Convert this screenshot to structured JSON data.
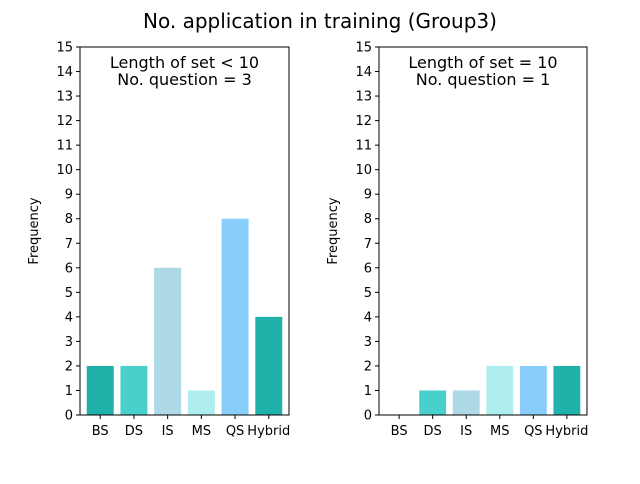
{
  "figure": {
    "title": "No. application in training (Group3)"
  },
  "chart_data": [
    {
      "type": "bar",
      "annotation": [
        "Length of set < 10",
        "No. question = 3"
      ],
      "categories": [
        "BS",
        "DS",
        "IS",
        "MS",
        "QS",
        "Hybrid"
      ],
      "values": [
        2,
        2,
        6,
        1,
        8,
        4
      ],
      "colors": [
        "#20b2aa",
        "#48d1cc",
        "#add8e6",
        "#afeeee",
        "#87cefa",
        "#20b2aa"
      ],
      "xlabel": "",
      "ylabel": "Frequency",
      "ylim": [
        0,
        15
      ],
      "yticks": [
        "0",
        "1",
        "2",
        "3",
        "4",
        "5",
        "6",
        "7",
        "8",
        "9",
        "10",
        "11",
        "12",
        "13",
        "14",
        "15"
      ],
      "grid": false
    },
    {
      "type": "bar",
      "annotation": [
        "Length of set = 10",
        "No. question = 1"
      ],
      "categories": [
        "BS",
        "DS",
        "IS",
        "MS",
        "QS",
        "Hybrid"
      ],
      "values": [
        0,
        1,
        1,
        2,
        2,
        2
      ],
      "colors": [
        "#20b2aa",
        "#48d1cc",
        "#add8e6",
        "#afeeee",
        "#87cefa",
        "#20b2aa"
      ],
      "xlabel": "",
      "ylabel": "Frequency",
      "ylim": [
        0,
        15
      ],
      "yticks": [
        "0",
        "1",
        "2",
        "3",
        "4",
        "5",
        "6",
        "7",
        "8",
        "9",
        "10",
        "11",
        "12",
        "13",
        "14",
        "15"
      ],
      "grid": false
    }
  ]
}
